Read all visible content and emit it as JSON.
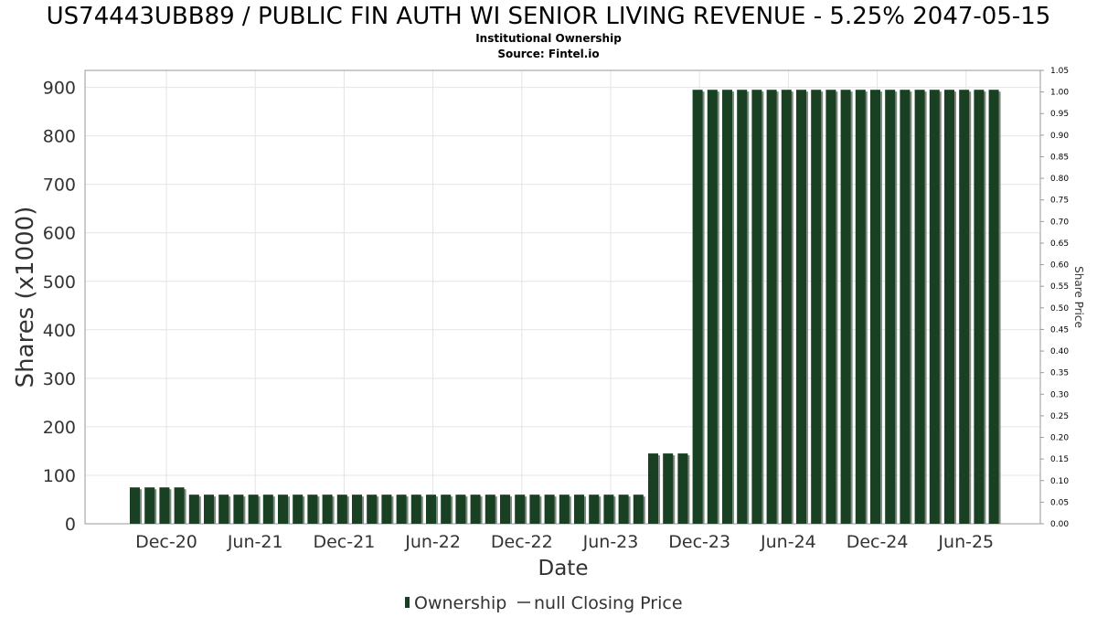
{
  "title": "US74443UBB89 / PUBLIC FIN AUTH WI SENIOR LIVING REVENUE - 5.25% 2047-05-15",
  "subtitle": "Institutional Ownership",
  "source": "Source: Fintel.io",
  "colors": {
    "bar": "#1a4023",
    "bar_shadow": "#7f8a80",
    "grid": "#e4e4e4",
    "axis_text": "#333333"
  },
  "chart_data": {
    "type": "bar",
    "xlabel": "Date",
    "ylabel": "Shares (x1000)",
    "y2label": "Share Price",
    "ylim": [
      0,
      935
    ],
    "yticks": [
      0,
      100,
      200,
      300,
      400,
      500,
      600,
      700,
      800,
      900
    ],
    "y2lim": [
      0,
      1.05
    ],
    "y2ticks": [
      "0.00",
      "0.05",
      "0.10",
      "0.15",
      "0.20",
      "0.25",
      "0.30",
      "0.35",
      "0.40",
      "0.45",
      "0.50",
      "0.55",
      "0.60",
      "0.65",
      "0.70",
      "0.75",
      "0.80",
      "0.85",
      "0.90",
      "0.95",
      "1.00",
      "1.05"
    ],
    "xticks": [
      "Dec-20",
      "Jun-21",
      "Dec-21",
      "Jun-22",
      "Dec-22",
      "Jun-23",
      "Dec-23",
      "Jun-24",
      "Dec-24",
      "Jun-25"
    ],
    "grid": true,
    "legend_position": "bottom",
    "series": [
      {
        "name": "Ownership",
        "values": [
          75,
          75,
          75,
          75,
          60,
          60,
          60,
          60,
          60,
          60,
          60,
          60,
          60,
          60,
          60,
          60,
          60,
          60,
          60,
          60,
          60,
          60,
          60,
          60,
          60,
          60,
          60,
          60,
          60,
          60,
          60,
          60,
          60,
          60,
          60,
          145,
          145,
          145,
          895,
          895,
          895,
          895,
          895,
          895,
          895,
          895,
          895,
          895,
          895,
          895,
          895,
          895,
          895,
          895,
          895,
          895,
          895,
          895,
          895
        ]
      },
      {
        "name": "null Closing Price",
        "values": []
      }
    ]
  },
  "legend": {
    "ownership_label": "Ownership",
    "price_label": "null Closing Price"
  }
}
